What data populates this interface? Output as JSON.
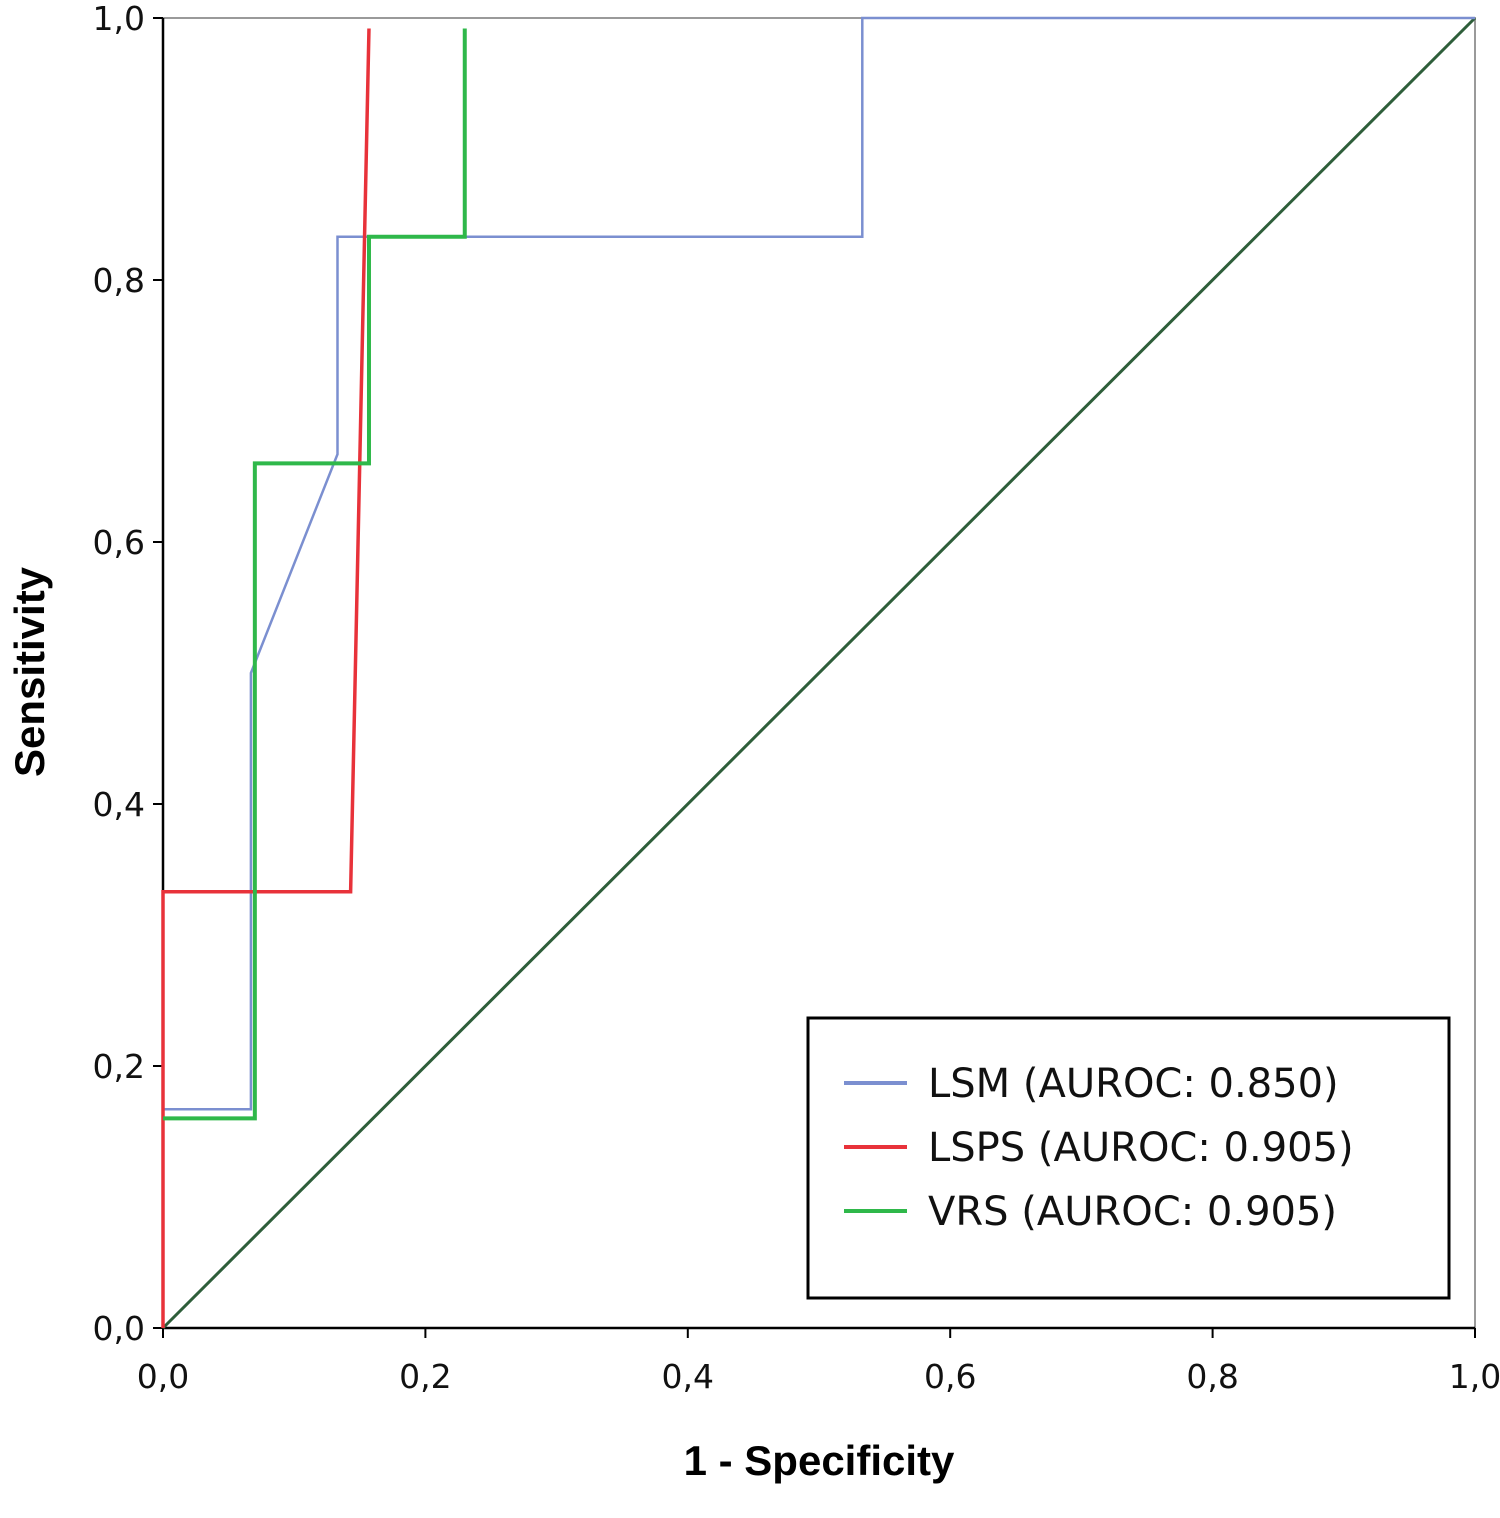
{
  "chart_data": {
    "type": "line",
    "title": "",
    "xlabel": "1 - Specificity",
    "ylabel": "Sensitivity",
    "xlim": [
      0,
      1
    ],
    "ylim": [
      0,
      1
    ],
    "x_ticks": [
      "0,0",
      "0,2",
      "0,4",
      "0,6",
      "0,8",
      "1,0"
    ],
    "y_ticks": [
      "0,0",
      "0,2",
      "0,4",
      "0,6",
      "0,8",
      "1,0"
    ],
    "grid": false,
    "legend_position": "bottom-right",
    "series": [
      {
        "name": "LSM (AUROC: 0.850)",
        "color": "#7b8fd0",
        "points": [
          [
            0.0,
            0.0
          ],
          [
            0.0,
            0.167
          ],
          [
            0.067,
            0.167
          ],
          [
            0.067,
            0.5
          ],
          [
            0.133,
            0.667
          ],
          [
            0.133,
            0.833
          ],
          [
            0.533,
            0.833
          ],
          [
            0.533,
            1.0
          ],
          [
            1.0,
            1.0
          ]
        ]
      },
      {
        "name": "LSPS (AUROC: 0.905)",
        "color": "#e8323a",
        "points": [
          [
            0.0,
            0.0
          ],
          [
            0.0,
            0.333
          ],
          [
            0.143,
            0.333
          ],
          [
            0.157,
            0.992
          ]
        ]
      },
      {
        "name": "VRS  (AUROC: 0.905)",
        "color": "#2fb84a",
        "points": [
          [
            0.0,
            0.16
          ],
          [
            0.07,
            0.16
          ],
          [
            0.07,
            0.66
          ],
          [
            0.157,
            0.66
          ],
          [
            0.157,
            0.833
          ],
          [
            0.23,
            0.833
          ],
          [
            0.23,
            0.992
          ]
        ]
      }
    ],
    "reference_line": {
      "points": [
        [
          0,
          0
        ],
        [
          1,
          1
        ]
      ],
      "color": "#2e5e3a"
    }
  }
}
